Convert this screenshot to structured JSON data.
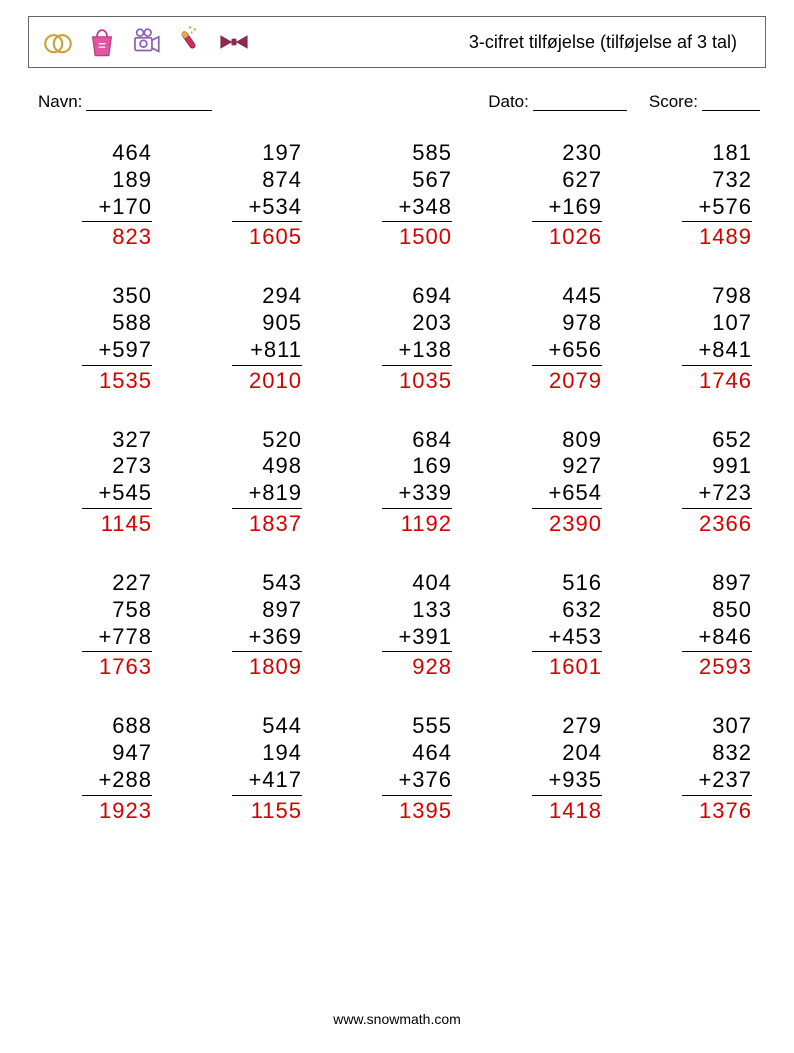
{
  "colors": {
    "answer": "#d40000",
    "border": "#666666",
    "text": "#000000",
    "background": "#ffffff"
  },
  "typography": {
    "font_family": "Comic Sans MS",
    "title_fontsize": 18,
    "meta_fontsize": 17,
    "problem_fontsize": 22,
    "footer_fontsize": 14
  },
  "header": {
    "title": "3-cifret tilføjelse (tilføjelse af 3 tal)",
    "icons": [
      "wedding-rings",
      "shopping-bag",
      "camera",
      "champagne",
      "bowtie"
    ]
  },
  "meta": {
    "name_label": "Navn:",
    "date_label": "Dato:",
    "score_label": "Score:",
    "name_line_width": 126,
    "date_line_width": 94,
    "score_line_width": 58
  },
  "layout": {
    "rows": 5,
    "cols": 5,
    "operator": "+"
  },
  "problems": [
    {
      "a": 464,
      "b": 189,
      "c": 170,
      "ans": 823
    },
    {
      "a": 197,
      "b": 874,
      "c": 534,
      "ans": 1605
    },
    {
      "a": 585,
      "b": 567,
      "c": 348,
      "ans": 1500
    },
    {
      "a": 230,
      "b": 627,
      "c": 169,
      "ans": 1026
    },
    {
      "a": 181,
      "b": 732,
      "c": 576,
      "ans": 1489
    },
    {
      "a": 350,
      "b": 588,
      "c": 597,
      "ans": 1535
    },
    {
      "a": 294,
      "b": 905,
      "c": 811,
      "ans": 2010
    },
    {
      "a": 694,
      "b": 203,
      "c": 138,
      "ans": 1035
    },
    {
      "a": 445,
      "b": 978,
      "c": 656,
      "ans": 2079
    },
    {
      "a": 798,
      "b": 107,
      "c": 841,
      "ans": 1746
    },
    {
      "a": 327,
      "b": 273,
      "c": 545,
      "ans": 1145
    },
    {
      "a": 520,
      "b": 498,
      "c": 819,
      "ans": 1837
    },
    {
      "a": 684,
      "b": 169,
      "c": 339,
      "ans": 1192
    },
    {
      "a": 809,
      "b": 927,
      "c": 654,
      "ans": 2390
    },
    {
      "a": 652,
      "b": 991,
      "c": 723,
      "ans": 2366
    },
    {
      "a": 227,
      "b": 758,
      "c": 778,
      "ans": 1763
    },
    {
      "a": 543,
      "b": 897,
      "c": 369,
      "ans": 1809
    },
    {
      "a": 404,
      "b": 133,
      "c": 391,
      "ans": 928
    },
    {
      "a": 516,
      "b": 632,
      "c": 453,
      "ans": 1601
    },
    {
      "a": 897,
      "b": 850,
      "c": 846,
      "ans": 2593
    },
    {
      "a": 688,
      "b": 947,
      "c": 288,
      "ans": 1923
    },
    {
      "a": 544,
      "b": 194,
      "c": 417,
      "ans": 1155
    },
    {
      "a": 555,
      "b": 464,
      "c": 376,
      "ans": 1395
    },
    {
      "a": 279,
      "b": 204,
      "c": 935,
      "ans": 1418
    },
    {
      "a": 307,
      "b": 832,
      "c": 237,
      "ans": 1376
    }
  ],
  "footer": {
    "text": "www.snowmath.com"
  }
}
